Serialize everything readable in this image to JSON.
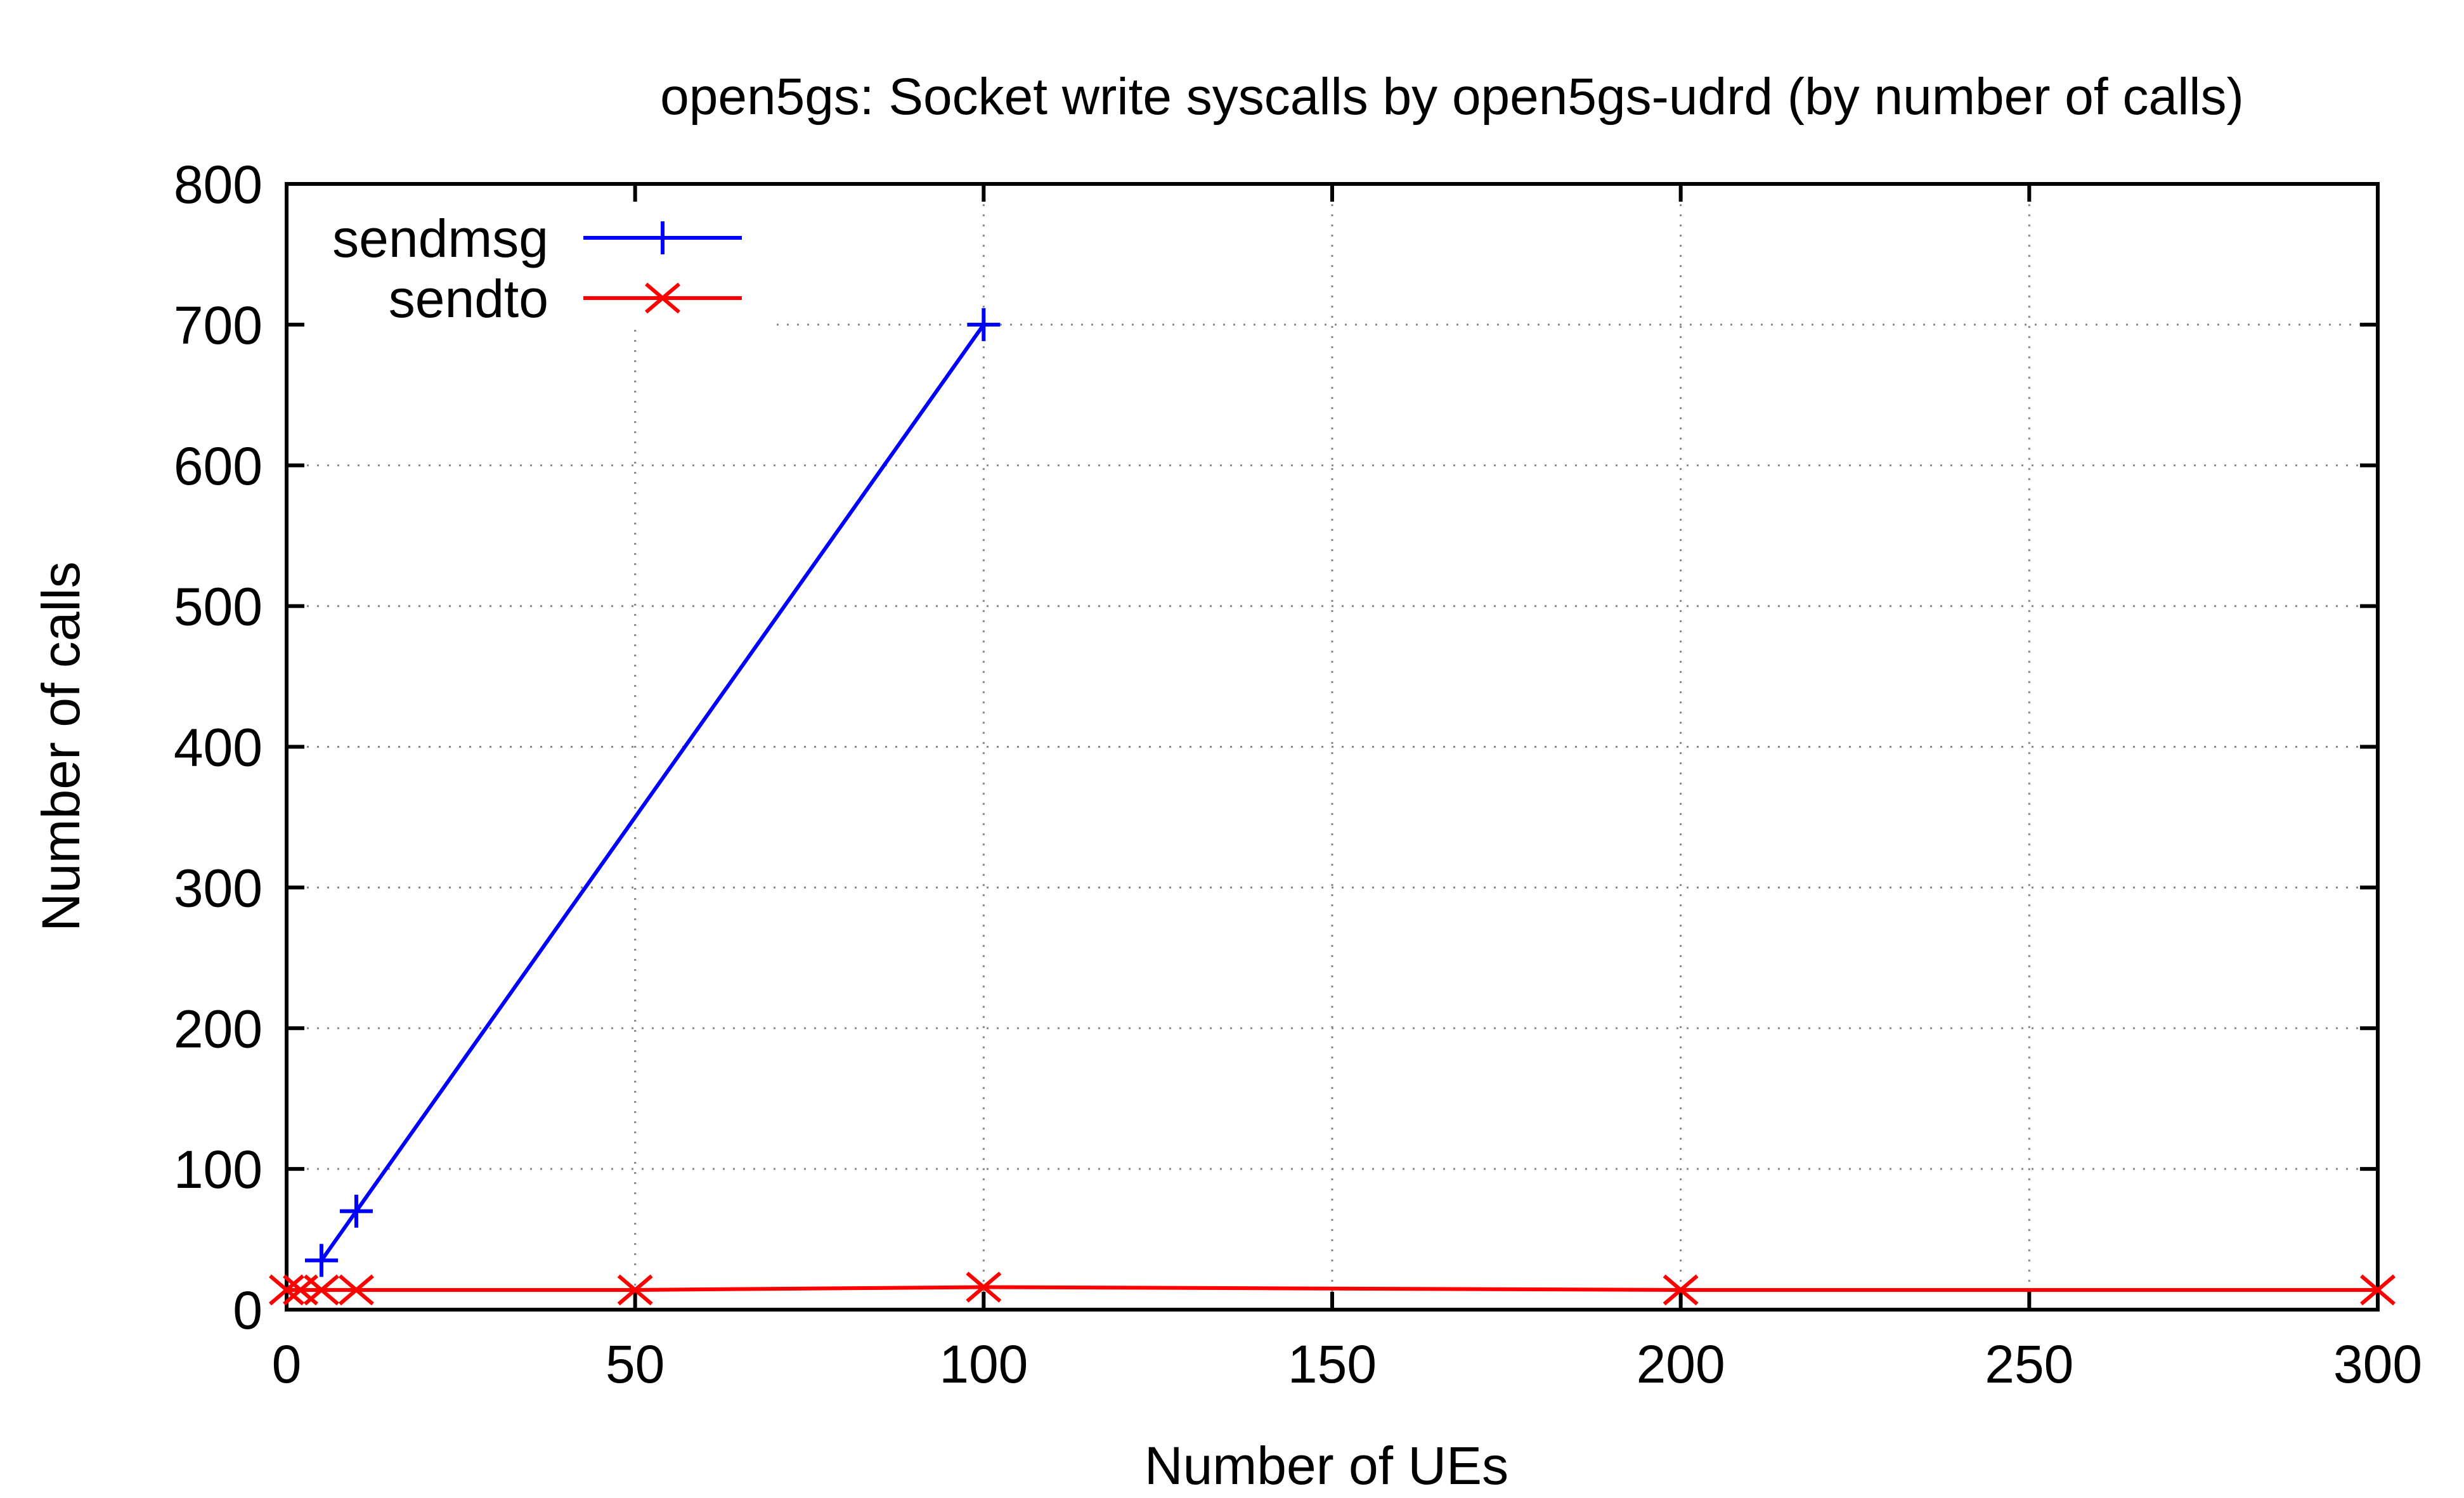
{
  "chart_data": {
    "type": "line",
    "title": "open5gs: Socket write syscalls by open5gs-udrd (by number of calls)",
    "xlabel": "Number of UEs",
    "ylabel": "Number of calls",
    "xlim": [
      0,
      300
    ],
    "ylim": [
      0,
      800
    ],
    "xticks": [
      "0",
      "50",
      "100",
      "150",
      "200",
      "250",
      "300"
    ],
    "yticks": [
      "0",
      "100",
      "200",
      "300",
      "400",
      "500",
      "600",
      "700",
      "800"
    ],
    "grid": true,
    "legend_position": "top-left",
    "series": [
      {
        "name": "sendmsg",
        "color": "#0000ff",
        "marker": "plus",
        "x": [
          5,
          10,
          100
        ],
        "y": [
          35,
          70,
          700
        ]
      },
      {
        "name": "sendto",
        "color": "#ff0000",
        "marker": "cross",
        "x": [
          0,
          2,
          5,
          10,
          50,
          100,
          200,
          300
        ],
        "y": [
          14,
          14,
          14,
          14,
          14,
          16,
          14,
          14
        ]
      }
    ]
  }
}
